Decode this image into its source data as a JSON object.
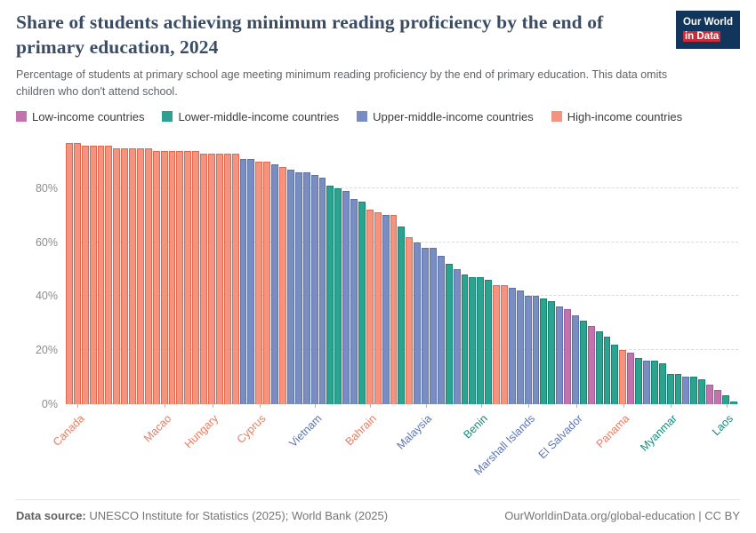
{
  "logo": {
    "line1": "Our World",
    "line2": "in Data"
  },
  "chart_data": {
    "type": "bar",
    "title": "Share of students achieving minimum reading proficiency by the end of primary education, 2024",
    "subtitle": "Percentage of students at primary school age meeting minimum reading proficiency by the end of primary education. This data omits children who don't attend school.",
    "xlabel": "",
    "ylabel": "",
    "unit": "%",
    "ylim": [
      0,
      100
    ],
    "yticks": [
      0,
      20,
      40,
      60,
      80
    ],
    "ytick_format": "{}%",
    "grid": "dashed-horizontal",
    "legend_position": "top",
    "legend": [
      {
        "key": "L",
        "label": "Low-income countries",
        "color": "#C273AE"
      },
      {
        "key": "M",
        "label": "Lower-middle-income countries",
        "color": "#2BA390"
      },
      {
        "key": "U",
        "label": "Upper-middle-income countries",
        "color": "#7A8DC2"
      },
      {
        "key": "H",
        "label": "High-income countries",
        "color": "#F4937F"
      }
    ],
    "group_names": {
      "H": "High-income countries",
      "U": "Upper-middle-income countries",
      "M": "Lower-middle-income countries",
      "L": "Low-income countries"
    },
    "group_colors": {
      "H": "#F4937F",
      "U": "#7A8DC2",
      "M": "#2BA390",
      "L": "#C273AE"
    },
    "group_strokes": {
      "H": "#DE6A50",
      "U": "#5C73AC",
      "M": "#13866F",
      "L": "#A8599A"
    },
    "label_colors": {
      "H": "#E97C5F",
      "U": "#5C74AE",
      "M": "#0F8E7C",
      "L": "#B05FA2"
    },
    "values": [
      97,
      97,
      96,
      96,
      96,
      96,
      95,
      95,
      95,
      95,
      95,
      94,
      94,
      94,
      94,
      94,
      94,
      93,
      93,
      93,
      93,
      93,
      91,
      91,
      90,
      90,
      89,
      88,
      87,
      86,
      86,
      85,
      84,
      81,
      80,
      79,
      76,
      75,
      72,
      71,
      70,
      70,
      66,
      62,
      60,
      58,
      58,
      55,
      52,
      50,
      48,
      47,
      47,
      46,
      44,
      44,
      43,
      42,
      40,
      40,
      39,
      38,
      36,
      35,
      33,
      31,
      29,
      27,
      25,
      22,
      20,
      19,
      17,
      16,
      16,
      15,
      11,
      11,
      10,
      10,
      9,
      7,
      5,
      3,
      1
    ],
    "groups": "HHHHHHHHHHHHHHHHHHHHHHUUHHUHUUUUUMMUUMHHUHMHUUUUMUMMMMHHUUUUMMULUMLMMMHLMUMMMMUMMLLMM",
    "tick_labels": [
      {
        "index": 1,
        "label": "Canada",
        "group": "H"
      },
      {
        "index": 12,
        "label": "Macao",
        "group": "H"
      },
      {
        "index": 18,
        "label": "Hungary",
        "group": "H"
      },
      {
        "index": 24,
        "label": "Cyprus",
        "group": "H"
      },
      {
        "index": 31,
        "label": "Vietnam",
        "group": "U"
      },
      {
        "index": 38,
        "label": "Bahrain",
        "group": "H"
      },
      {
        "index": 45,
        "label": "Malaysia",
        "group": "U"
      },
      {
        "index": 52,
        "label": "Benin",
        "group": "M"
      },
      {
        "index": 58,
        "label": "Marshall Islands",
        "group": "U"
      },
      {
        "index": 64,
        "label": "El Salvador",
        "group": "U"
      },
      {
        "index": 70,
        "label": "Panama",
        "group": "H"
      },
      {
        "index": 76,
        "label": "Myanmar",
        "group": "M"
      },
      {
        "index": 83,
        "label": "Laos",
        "group": "M"
      }
    ]
  },
  "footer": {
    "source_label": "Data source:",
    "source_text": " UNESCO Institute for Statistics (2025); World Bank (2025)",
    "credit": "OurWorldinData.org/global-education | CC BY"
  }
}
